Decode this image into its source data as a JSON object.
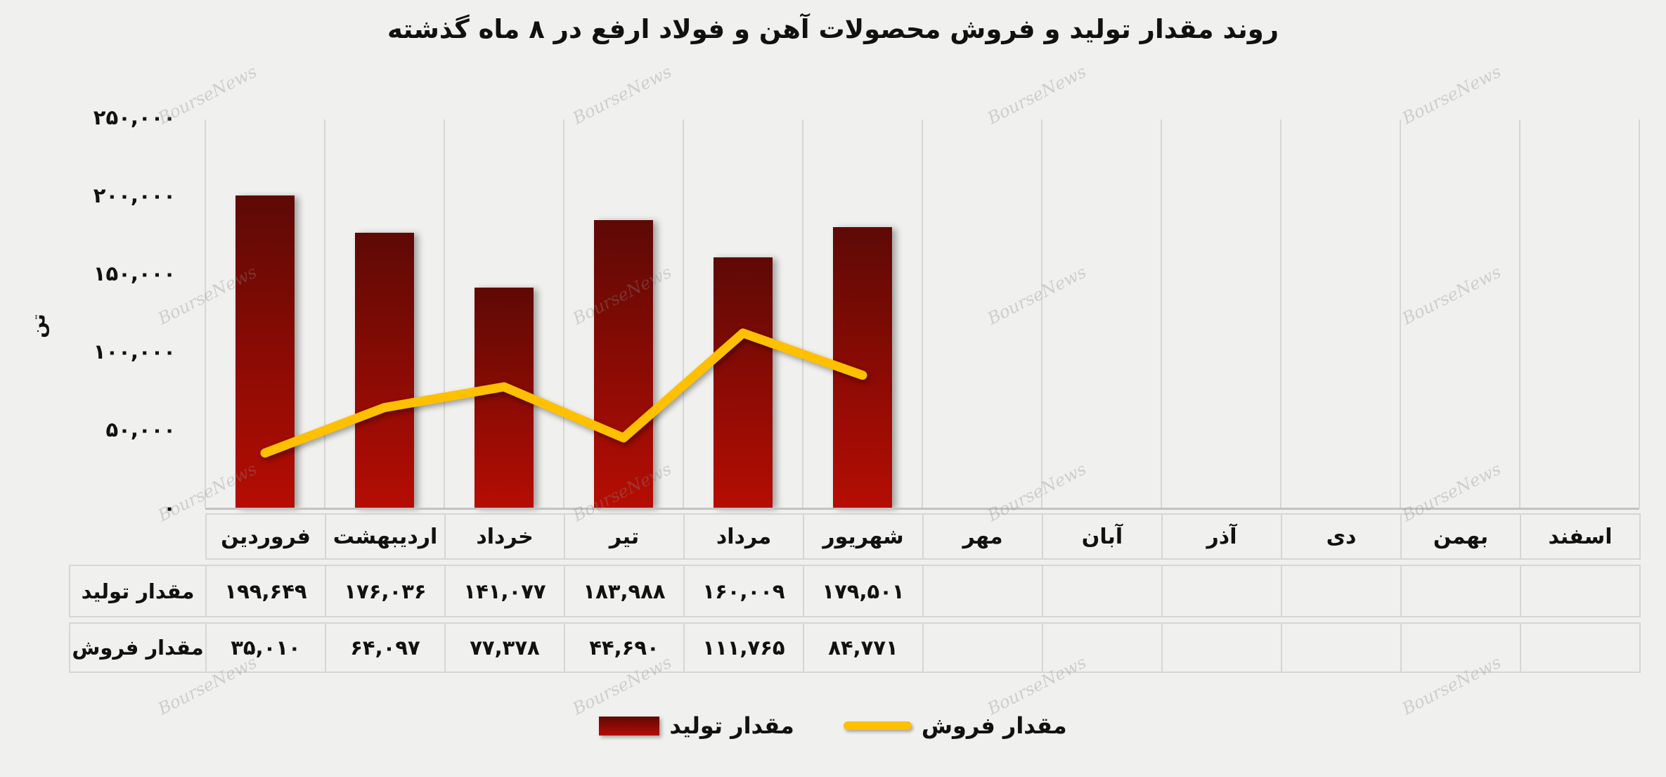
{
  "title": "روند مقدار تولید و فروش محصولات آهن و فولاد ارفع در ۸ ماه گذشته",
  "watermark": "BourseNews",
  "y_axis": {
    "unit": "تن",
    "ticks": [
      "۲۵۰,۰۰۰",
      "۲۰۰,۰۰۰",
      "۱۵۰,۰۰۰",
      "۱۰۰,۰۰۰",
      "۵۰,۰۰۰",
      "۰"
    ]
  },
  "months": [
    "فروردین",
    "اردیبهشت",
    "خرداد",
    "تیر",
    "مرداد",
    "شهریور",
    "مهر",
    "آبان",
    "آذر",
    "دی",
    "بهمن",
    "اسفند"
  ],
  "table": {
    "production_label": "مقدار تولید",
    "sales_label": "مقدار فروش",
    "production_values": [
      "۱۹۹,۶۴۹",
      "۱۷۶,۰۳۶",
      "۱۴۱,۰۷۷",
      "۱۸۳,۹۸۸",
      "۱۶۰,۰۰۹",
      "۱۷۹,۵۰۱",
      "",
      "",
      "",
      "",
      "",
      ""
    ],
    "sales_values": [
      "۳۵,۰۱۰",
      "۶۴,۰۹۷",
      "۷۷,۳۷۸",
      "۴۴,۶۹۰",
      "۱۱۱,۷۶۵",
      "۸۴,۷۷۱",
      "",
      "",
      "",
      "",
      "",
      ""
    ]
  },
  "legend": {
    "production": "مقدار تولید",
    "sales": "مقدار فروش"
  },
  "colors": {
    "background": "#f0f0ee",
    "bar_gradient_top": "#5e0905",
    "bar_gradient_bottom": "#b50d03",
    "line": "#ffc000",
    "grid": "#d6d6d6",
    "text": "#111111"
  },
  "chart_data": {
    "type": "bar",
    "title": "روند مقدار تولید و فروش محصولات آهن و فولاد ارفع در ۸ ماه گذشته",
    "categories": [
      "فروردین",
      "اردیبهشت",
      "خرداد",
      "تیر",
      "مرداد",
      "شهریور",
      "مهر",
      "آبان",
      "آذر",
      "دی",
      "بهمن",
      "اسفند"
    ],
    "series": [
      {
        "name": "مقدار تولید",
        "type": "bar",
        "values": [
          199649,
          176036,
          141077,
          183988,
          160009,
          179501,
          null,
          null,
          null,
          null,
          null,
          null
        ]
      },
      {
        "name": "مقدار فروش",
        "type": "line",
        "values": [
          35010,
          64097,
          77378,
          44690,
          111765,
          84771,
          null,
          null,
          null,
          null,
          null,
          null
        ]
      }
    ],
    "ylabel": "تن",
    "ylim": [
      0,
      250000
    ],
    "ytick_step": 50000,
    "grid": "vertical-only",
    "legend_position": "bottom"
  }
}
